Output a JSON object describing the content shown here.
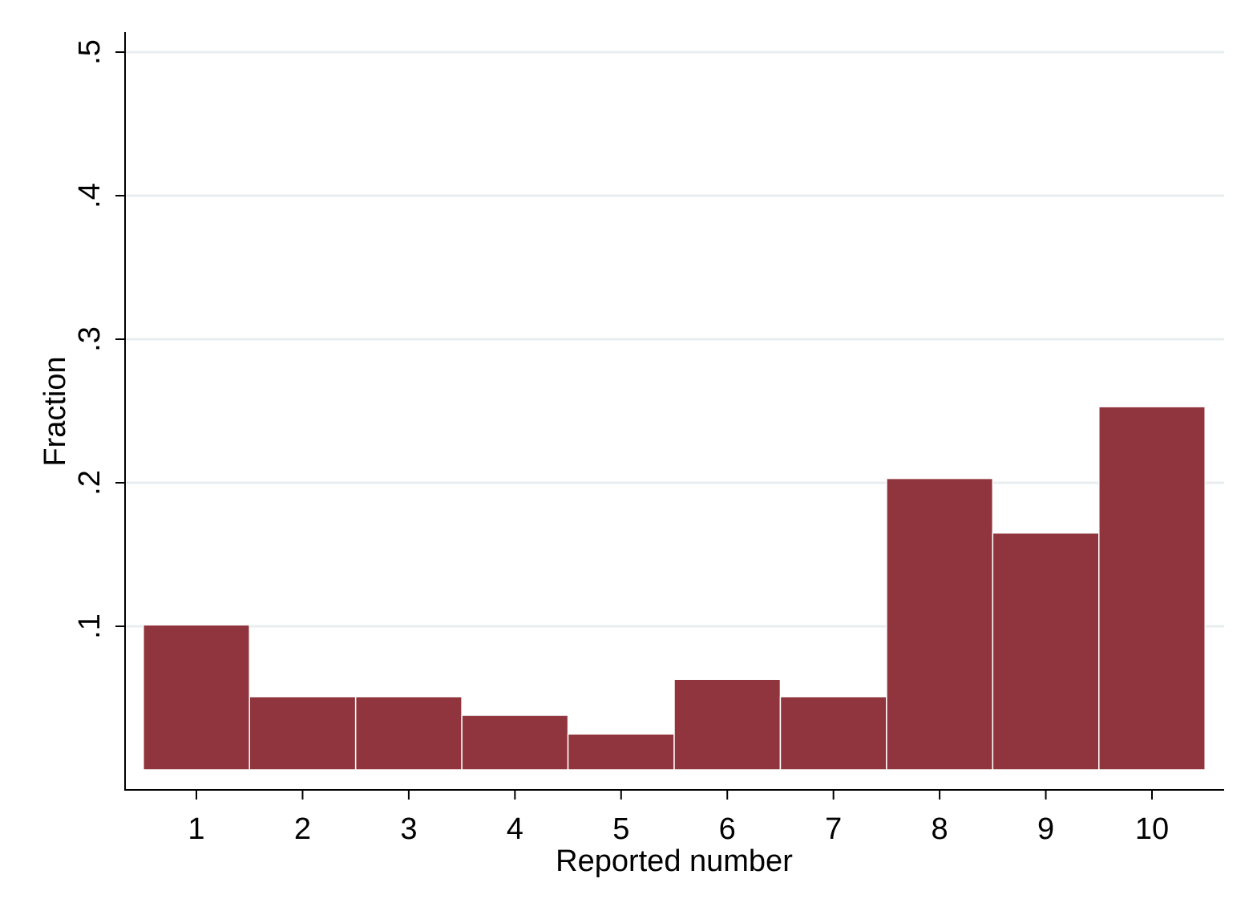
{
  "chart_data": {
    "type": "bar",
    "style": "histogram",
    "categories": [
      "1",
      "2",
      "3",
      "4",
      "5",
      "6",
      "7",
      "8",
      "9",
      "10"
    ],
    "x": [
      1,
      2,
      3,
      4,
      5,
      6,
      7,
      8,
      9,
      10
    ],
    "values": [
      0.101,
      0.051,
      0.051,
      0.038,
      0.025,
      0.063,
      0.051,
      0.203,
      0.165,
      0.253
    ],
    "xlabel": "Reported number",
    "ylabel": "Fraction",
    "xlim": [
      0.5,
      10.5
    ],
    "ylim": [
      0,
      0.5
    ],
    "yticks": [
      {
        "value": 0.1,
        "label": ".1"
      },
      {
        "value": 0.2,
        "label": ".2"
      },
      {
        "value": 0.3,
        "label": ".3"
      },
      {
        "value": 0.4,
        "label": ".4"
      },
      {
        "value": 0.5,
        "label": ".5"
      }
    ],
    "xticks": [
      {
        "value": 1,
        "label": "1"
      },
      {
        "value": 2,
        "label": "2"
      },
      {
        "value": 3,
        "label": "3"
      },
      {
        "value": 4,
        "label": "4"
      },
      {
        "value": 5,
        "label": "5"
      },
      {
        "value": 6,
        "label": "6"
      },
      {
        "value": 7,
        "label": "7"
      },
      {
        "value": 8,
        "label": "8"
      },
      {
        "value": 9,
        "label": "9"
      },
      {
        "value": 10,
        "label": "10"
      }
    ],
    "grid": "horizontal",
    "legend": "none",
    "bar_color": "#90353d",
    "bar_edge_color": "#ffffff",
    "grid_color": "#e8eef0",
    "axis_color": "#000000"
  }
}
